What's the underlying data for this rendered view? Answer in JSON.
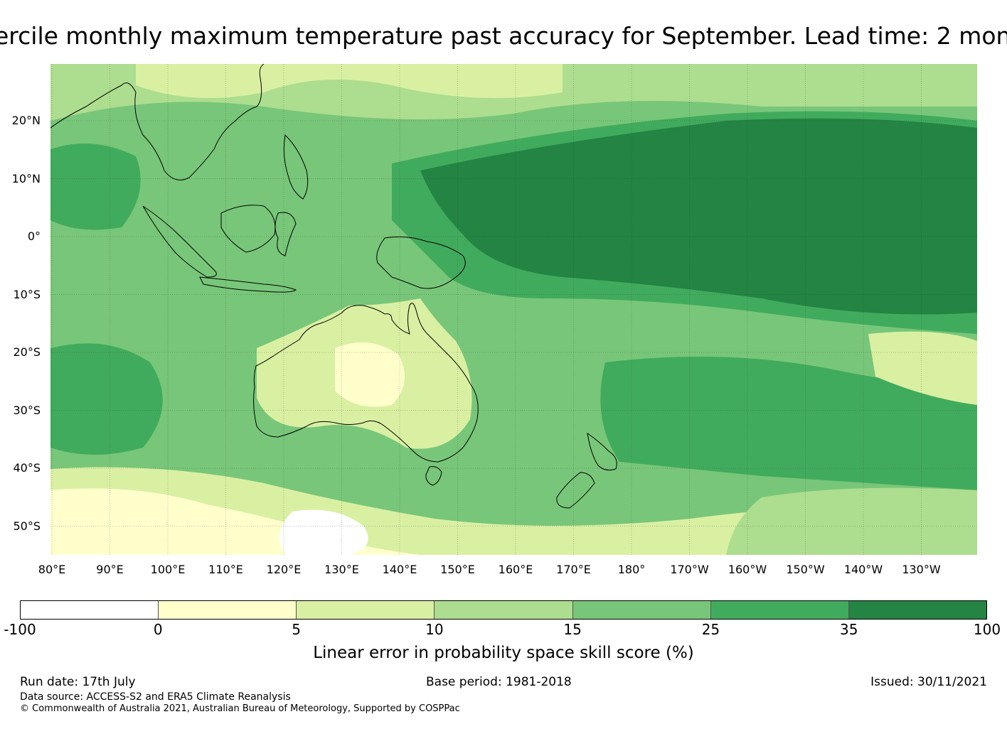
{
  "title": "ercile monthly maximum temperature past accuracy for September. Lead time: 2 mon",
  "map": {
    "lat_labels": [
      "20°N",
      "10°N",
      "0°",
      "10°S",
      "20°S",
      "30°S",
      "40°S",
      "50°S"
    ],
    "lon_labels": [
      "80°E",
      "90°E",
      "100°E",
      "110°E",
      "120°E",
      "130°E",
      "140°E",
      "150°E",
      "160°E",
      "170°E",
      "180°",
      "170°W",
      "160°W",
      "150°W",
      "140°W",
      "130°W"
    ]
  },
  "colorbar": {
    "tick_labels": [
      "-100",
      "0",
      "5",
      "10",
      "15",
      "25",
      "35",
      "100"
    ],
    "colors": [
      "#ffffff",
      "#ffffcc",
      "#d9f0a3",
      "#addd8e",
      "#78c679",
      "#41ab5d",
      "#238443"
    ],
    "label": "Linear error in probability space skill score (%)"
  },
  "footer": {
    "run_date": "Run date: 17th July",
    "base_period": "Base period: 1981-2018",
    "issued": "Issued: 30/11/2021",
    "data_source": "Data source: ACCESS-S2 and ERA5 Climate Reanalysis",
    "copyright": "© Commonwealth of Australia 2021, Australian Bureau of Meteorology, Supported by COSPPac"
  }
}
